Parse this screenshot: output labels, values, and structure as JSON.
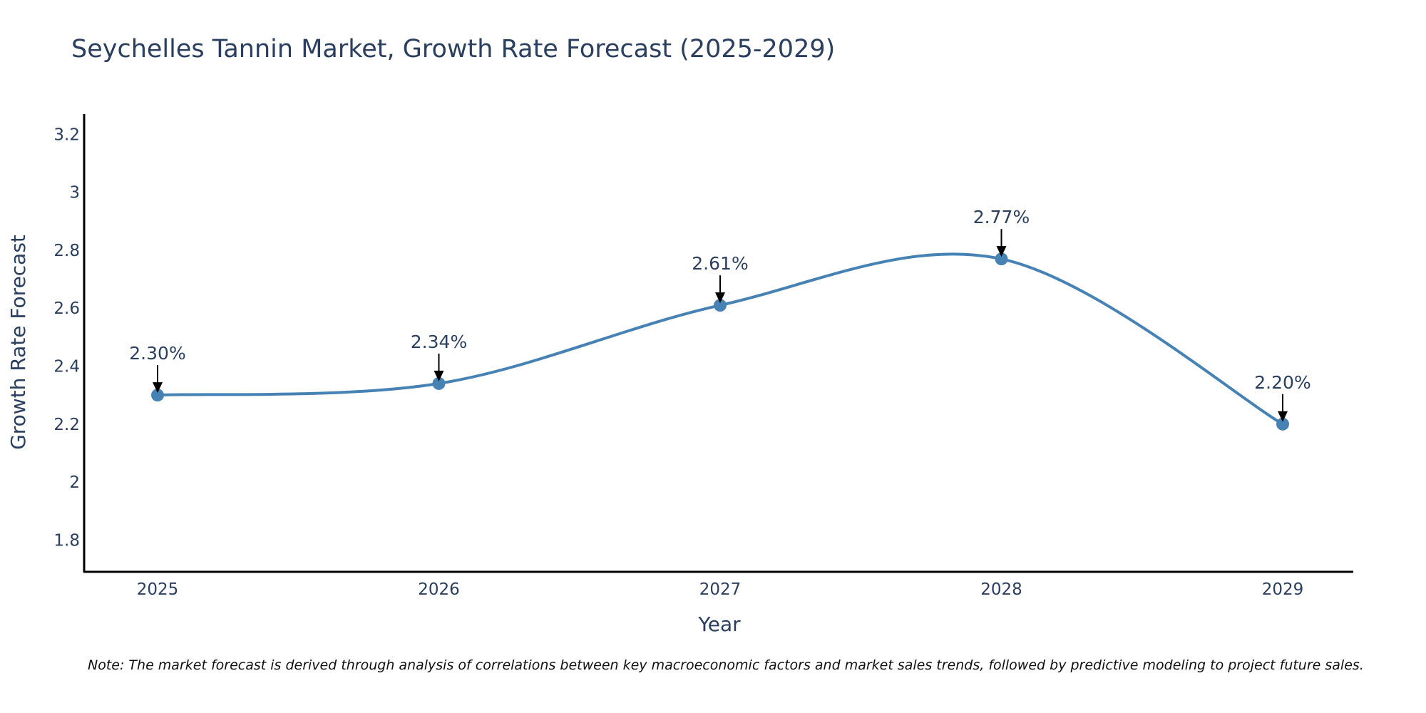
{
  "chart_data": {
    "type": "line",
    "title": "Seychelles Tannin Market, Growth Rate Forecast (2025-2029)",
    "xlabel": "Year",
    "ylabel": "Growth Rate Forecast",
    "categories": [
      "2025",
      "2026",
      "2027",
      "2028",
      "2029"
    ],
    "values": [
      2.3,
      2.34,
      2.61,
      2.77,
      2.2
    ],
    "data_labels": [
      "2.30%",
      "2.34%",
      "2.61%",
      "2.77%",
      "2.20%"
    ],
    "ylim": [
      1.69,
      3.27
    ],
    "yticks": [
      1.8,
      2,
      2.2,
      2.4,
      2.6,
      2.8,
      3,
      3.2
    ],
    "ytick_labels": [
      "1.8",
      "2",
      "2.2",
      "2.4",
      "2.6",
      "2.8",
      "3",
      "3.2"
    ],
    "line_shape": "spline",
    "grid": false,
    "legend": "none",
    "line_color": "#4682b4",
    "marker_color": "#4682b4",
    "arrow_color": "#000000",
    "note": "Note: The market forecast is derived through analysis of correlations between key macroeconomic factors and market sales trends, followed by predictive modeling to project future sales."
  }
}
